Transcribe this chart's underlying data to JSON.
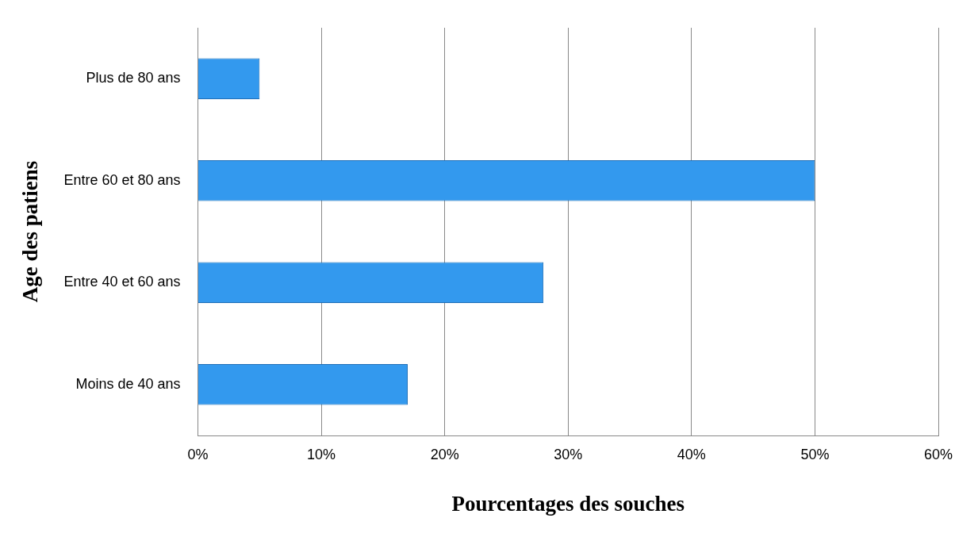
{
  "chart_data": {
    "type": "bar",
    "orientation": "horizontal",
    "xlabel": "Pourcentages des souches",
    "ylabel": "Age des patiens",
    "categories": [
      "Plus de 80 ans",
      "Entre 60 et 80 ans",
      "Entre 40 et 60 ans",
      "Moins de 40 ans"
    ],
    "values": [
      5,
      50,
      28,
      17
    ],
    "color": "#3399ee",
    "xlim": [
      0,
      60
    ],
    "xticks": [
      {
        "value": 0,
        "label": "0%"
      },
      {
        "value": 10,
        "label": "10%"
      },
      {
        "value": 20,
        "label": "20%"
      },
      {
        "value": 30,
        "label": "30%"
      },
      {
        "value": 40,
        "label": "40%"
      },
      {
        "value": 50,
        "label": "50%"
      },
      {
        "value": 60,
        "label": "60%"
      }
    ],
    "grid": "x",
    "legend": false
  }
}
